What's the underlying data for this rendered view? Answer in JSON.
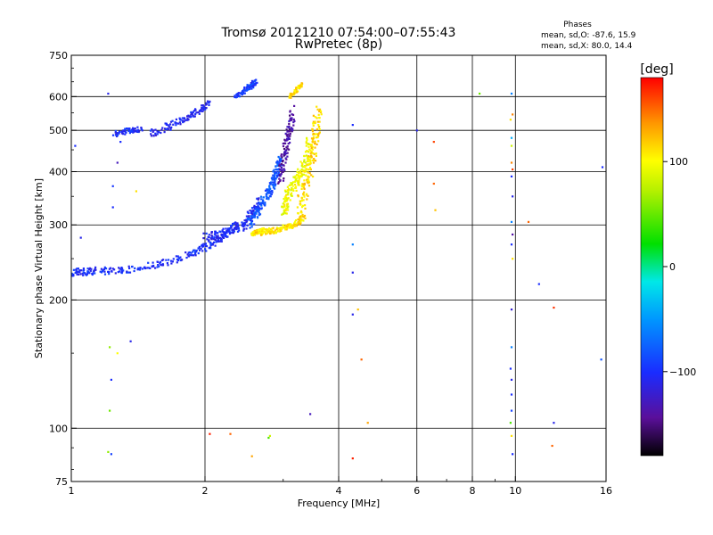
{
  "chart_data": {
    "type": "scatter",
    "title": "Tromsø 20121210 07:54:00–07:55:43",
    "subtitle": "RwPretec (8p)",
    "xlabel": "Frequency [MHz]",
    "ylabel": "Stationary phase Virtual Height [km]",
    "x_scale": "log",
    "y_scale": "log",
    "xlim": [
      1,
      16
    ],
    "ylim": [
      75,
      750
    ],
    "x_ticks": [
      1,
      2,
      4,
      6,
      8,
      10,
      16
    ],
    "x_tick_labels": [
      "1",
      "2",
      "4",
      "6",
      "8",
      "10",
      "16"
    ],
    "y_ticks": [
      75,
      100,
      200,
      300,
      400,
      500,
      600,
      750
    ],
    "y_tick_labels": [
      "75",
      "100",
      "200",
      "300",
      "400",
      "500",
      "600",
      "750"
    ],
    "grid": true,
    "stats": {
      "title": "Phases",
      "line_o": "mean, sd,O: -87.6, 15.9",
      "line_x": "mean, sd,X: 80.0, 14.4"
    },
    "colorbar": {
      "label": "[deg]",
      "range": [
        -180,
        180
      ],
      "ticks": [
        100,
        0,
        -100
      ],
      "tick_labels": [
        "100",
        "0",
        "−100"
      ]
    },
    "trace_segments": [
      {
        "x": [
          1.0,
          1.06,
          1.15,
          1.3,
          1.5,
          1.7,
          1.9,
          2.05,
          2.2,
          2.35
        ],
        "y": [
          232,
          233,
          234,
          235,
          240,
          248,
          258,
          270,
          282,
          300
        ],
        "phase": -100,
        "spread": 0.04
      },
      {
        "x": [
          2.0,
          2.15,
          2.3,
          2.45,
          2.55,
          2.65
        ],
        "y": [
          280,
          285,
          290,
          300,
          320,
          340
        ],
        "phase": -105,
        "spread": 0.05
      },
      {
        "x": [
          2.5,
          2.6,
          2.7,
          2.8,
          2.85,
          2.9,
          2.95
        ],
        "y": [
          300,
          320,
          340,
          360,
          380,
          400,
          430
        ],
        "phase": -80,
        "spread": 0.05
      },
      {
        "x": [
          2.55,
          2.6,
          2.65,
          2.7
        ],
        "y": [
          285,
          288,
          290,
          292
        ],
        "phase": 110,
        "spread": 0.02
      },
      {
        "x": [
          2.65,
          2.8,
          2.95,
          3.1,
          3.25,
          3.35
        ],
        "y": [
          288,
          290,
          293,
          298,
          305,
          315
        ],
        "phase": 110,
        "spread": 0.03
      },
      {
        "x": [
          3.0,
          3.05,
          3.1,
          3.2,
          3.3,
          3.4,
          3.45
        ],
        "y": [
          320,
          340,
          360,
          380,
          400,
          430,
          470
        ],
        "phase": 95,
        "spread": 0.06
      },
      {
        "x": [
          2.95,
          3.0,
          3.05,
          3.1,
          3.15
        ],
        "y": [
          380,
          420,
          460,
          500,
          560
        ],
        "phase": -140,
        "spread": 0.05
      },
      {
        "x": [
          3.25,
          3.35,
          3.45,
          3.5,
          3.55,
          3.6
        ],
        "y": [
          320,
          360,
          400,
          450,
          500,
          560
        ],
        "phase": 112,
        "spread": 0.07
      },
      {
        "x": [
          3.1,
          3.2,
          3.3
        ],
        "y": [
          600,
          620,
          640
        ],
        "phase": 112,
        "spread": 0.02
      },
      {
        "x": [
          1.5,
          1.65,
          1.8,
          1.95,
          2.05
        ],
        "y": [
          490,
          510,
          530,
          560,
          580
        ],
        "phase": -105,
        "spread": 0.04
      },
      {
        "x": [
          1.25,
          1.35,
          1.45
        ],
        "y": [
          490,
          500,
          505
        ],
        "phase": -100,
        "spread": 0.03
      },
      {
        "x": [
          2.35,
          2.45,
          2.55,
          2.6
        ],
        "y": [
          600,
          620,
          640,
          650
        ],
        "phase": -95,
        "spread": 0.03
      }
    ],
    "points": [
      {
        "x": 1.02,
        "y": 460,
        "phase": -100
      },
      {
        "x": 1.05,
        "y": 280,
        "phase": -110
      },
      {
        "x": 1.21,
        "y": 610,
        "phase": -110
      },
      {
        "x": 1.24,
        "y": 370,
        "phase": -95
      },
      {
        "x": 1.24,
        "y": 330,
        "phase": -100
      },
      {
        "x": 1.27,
        "y": 420,
        "phase": -130
      },
      {
        "x": 1.29,
        "y": 470,
        "phase": -100
      },
      {
        "x": 1.4,
        "y": 360,
        "phase": 110
      },
      {
        "x": 1.22,
        "y": 155,
        "phase": 60
      },
      {
        "x": 1.27,
        "y": 150,
        "phase": 100
      },
      {
        "x": 1.36,
        "y": 160,
        "phase": -110
      },
      {
        "x": 1.23,
        "y": 130,
        "phase": -100
      },
      {
        "x": 1.22,
        "y": 110,
        "phase": 50
      },
      {
        "x": 1.21,
        "y": 88,
        "phase": 60
      },
      {
        "x": 1.23,
        "y": 87,
        "phase": -90
      },
      {
        "x": 2.05,
        "y": 97,
        "phase": 170
      },
      {
        "x": 2.28,
        "y": 97,
        "phase": 150
      },
      {
        "x": 2.55,
        "y": 86,
        "phase": 130
      },
      {
        "x": 2.8,
        "y": 96,
        "phase": 80
      },
      {
        "x": 2.78,
        "y": 95,
        "phase": 40
      },
      {
        "x": 3.45,
        "y": 108,
        "phase": -130
      },
      {
        "x": 4.3,
        "y": 515,
        "phase": -100
      },
      {
        "x": 4.3,
        "y": 270,
        "phase": -60
      },
      {
        "x": 4.3,
        "y": 232,
        "phase": -110
      },
      {
        "x": 4.3,
        "y": 185,
        "phase": -110
      },
      {
        "x": 4.42,
        "y": 190,
        "phase": 120
      },
      {
        "x": 4.5,
        "y": 145,
        "phase": 150
      },
      {
        "x": 4.65,
        "y": 103,
        "phase": 130
      },
      {
        "x": 4.3,
        "y": 85,
        "phase": 170
      },
      {
        "x": 6.0,
        "y": 500,
        "phase": -110
      },
      {
        "x": 6.55,
        "y": 470,
        "phase": 160
      },
      {
        "x": 6.55,
        "y": 375,
        "phase": 150
      },
      {
        "x": 6.6,
        "y": 325,
        "phase": 120
      },
      {
        "x": 8.3,
        "y": 610,
        "phase": 50
      },
      {
        "x": 9.8,
        "y": 610,
        "phase": -60
      },
      {
        "x": 9.75,
        "y": 530,
        "phase": 110
      },
      {
        "x": 9.85,
        "y": 545,
        "phase": 140
      },
      {
        "x": 9.8,
        "y": 480,
        "phase": -40
      },
      {
        "x": 9.8,
        "y": 460,
        "phase": 80
      },
      {
        "x": 9.8,
        "y": 420,
        "phase": 140
      },
      {
        "x": 9.85,
        "y": 405,
        "phase": 160
      },
      {
        "x": 9.8,
        "y": 390,
        "phase": -100
      },
      {
        "x": 9.85,
        "y": 350,
        "phase": -110
      },
      {
        "x": 9.8,
        "y": 305,
        "phase": -60
      },
      {
        "x": 9.85,
        "y": 285,
        "phase": -140
      },
      {
        "x": 9.8,
        "y": 270,
        "phase": -100
      },
      {
        "x": 9.85,
        "y": 250,
        "phase": 110
      },
      {
        "x": 9.8,
        "y": 190,
        "phase": -120
      },
      {
        "x": 9.8,
        "y": 155,
        "phase": -60
      },
      {
        "x": 9.75,
        "y": 138,
        "phase": -100
      },
      {
        "x": 9.8,
        "y": 130,
        "phase": -110
      },
      {
        "x": 9.8,
        "y": 120,
        "phase": -100
      },
      {
        "x": 9.8,
        "y": 110,
        "phase": -90
      },
      {
        "x": 9.75,
        "y": 103,
        "phase": 40
      },
      {
        "x": 9.8,
        "y": 96,
        "phase": 110
      },
      {
        "x": 9.85,
        "y": 87,
        "phase": -100
      },
      {
        "x": 10.7,
        "y": 305,
        "phase": 150
      },
      {
        "x": 11.3,
        "y": 218,
        "phase": -100
      },
      {
        "x": 12.2,
        "y": 192,
        "phase": 165
      },
      {
        "x": 12.2,
        "y": 103,
        "phase": -110
      },
      {
        "x": 12.1,
        "y": 91,
        "phase": 150
      },
      {
        "x": 15.7,
        "y": 410,
        "phase": -100
      },
      {
        "x": 15.6,
        "y": 145,
        "phase": -80
      }
    ]
  }
}
